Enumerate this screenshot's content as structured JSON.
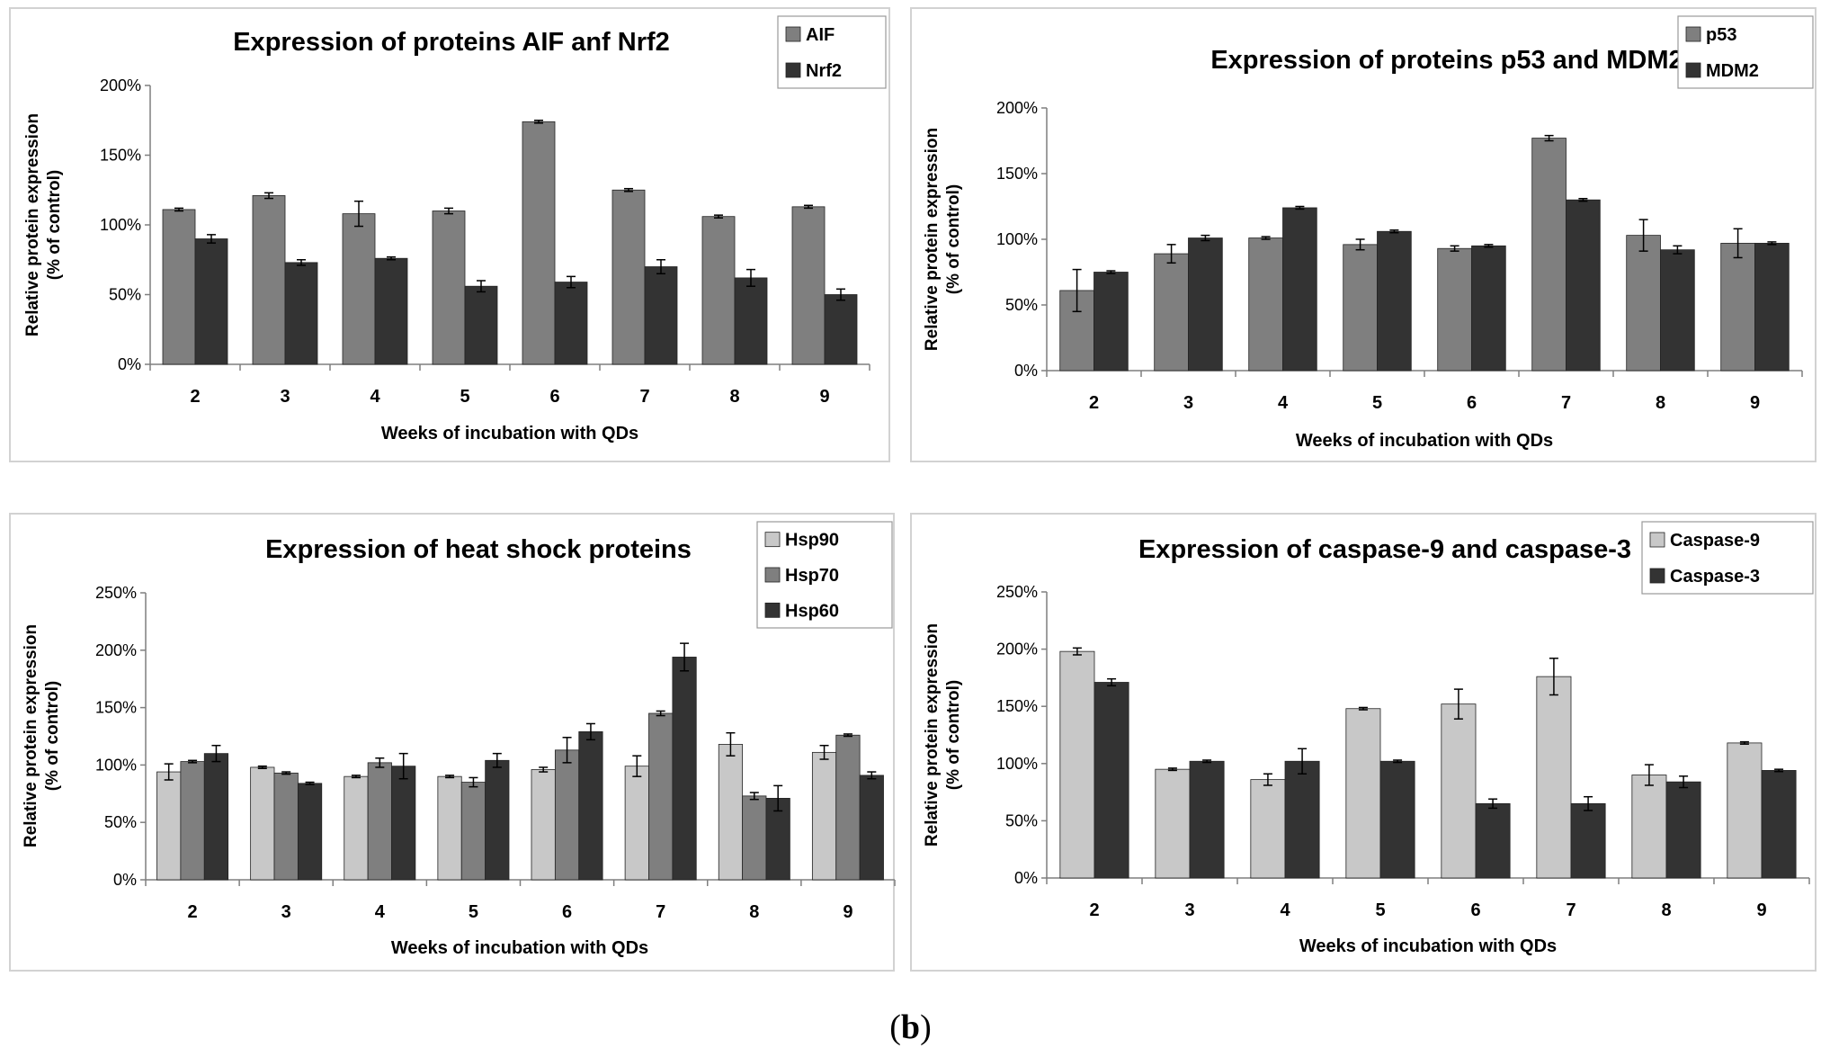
{
  "caption": {
    "open": "(",
    "label": "b",
    "close": ")"
  },
  "colors": {
    "light": "#c8c8c8",
    "mid": "#7f7f7f",
    "dark": "#333333",
    "axis": "#7f7f7f"
  },
  "chart_data": [
    {
      "type": "bar",
      "title": "Expression of proteins AIF anf Nrf2",
      "xlabel": "Weeks of incubation with QDs",
      "ylabel": [
        "Relative protein expression",
        "(% of control)"
      ],
      "categories": [
        "2",
        "3",
        "4",
        "5",
        "6",
        "7",
        "8",
        "9"
      ],
      "ylim": [
        0,
        200
      ],
      "yticks": [
        0,
        50,
        100,
        150,
        200
      ],
      "ytick_labels": [
        "0%",
        "50%",
        "100%",
        "150%",
        "200%"
      ],
      "legend": "top-right",
      "series": [
        {
          "name": "AIF",
          "color": "#7f7f7f",
          "values": [
            111,
            121,
            108,
            110,
            174,
            125,
            106,
            113
          ],
          "errors": [
            1,
            2,
            9,
            2,
            1,
            1,
            1,
            1
          ]
        },
        {
          "name": "Nrf2",
          "color": "#333333",
          "values": [
            90,
            73,
            76,
            56,
            59,
            70,
            62,
            50
          ],
          "errors": [
            3,
            2,
            1,
            4,
            4,
            5,
            6,
            4
          ]
        }
      ]
    },
    {
      "type": "bar",
      "title": "Expression of proteins p53 and MDM2",
      "xlabel": "Weeks of incubation with QDs",
      "ylabel": [
        "Relative protein expression",
        "(% of control)"
      ],
      "categories": [
        "2",
        "3",
        "4",
        "5",
        "6",
        "7",
        "8",
        "9"
      ],
      "ylim": [
        0,
        200
      ],
      "yticks": [
        0,
        50,
        100,
        150,
        200
      ],
      "ytick_labels": [
        "0%",
        "50%",
        "100%",
        "150%",
        "200%"
      ],
      "legend": "top-right",
      "series": [
        {
          "name": "p53",
          "color": "#7f7f7f",
          "values": [
            61,
            89,
            101,
            96,
            93,
            177,
            103,
            97
          ],
          "errors": [
            16,
            7,
            1,
            4,
            2,
            2,
            12,
            11
          ]
        },
        {
          "name": "MDM2",
          "color": "#333333",
          "values": [
            75,
            101,
            124,
            106,
            95,
            130,
            92,
            97
          ],
          "errors": [
            1,
            2,
            1,
            1,
            1,
            1,
            3,
            1
          ]
        }
      ]
    },
    {
      "type": "bar",
      "title": "Expression of heat shock proteins",
      "xlabel": "Weeks of incubation with QDs",
      "ylabel": [
        "Relative protein expression",
        "(% of control)"
      ],
      "categories": [
        "2",
        "3",
        "4",
        "5",
        "6",
        "7",
        "8",
        "9"
      ],
      "ylim": [
        0,
        250
      ],
      "yticks": [
        0,
        50,
        100,
        150,
        200,
        250
      ],
      "ytick_labels": [
        "0%",
        "50%",
        "100%",
        "150%",
        "200%",
        "250%"
      ],
      "legend": "top-right",
      "series": [
        {
          "name": "Hsp90",
          "color": "#c8c8c8",
          "values": [
            94,
            98,
            90,
            90,
            96,
            99,
            118,
            111
          ],
          "errors": [
            7,
            1,
            1,
            1,
            2,
            9,
            10,
            6
          ]
        },
        {
          "name": "Hsp70",
          "color": "#7f7f7f",
          "values": [
            103,
            93,
            102,
            85,
            113,
            145,
            73,
            126
          ],
          "errors": [
            1,
            1,
            4,
            4,
            11,
            2,
            3,
            1
          ]
        },
        {
          "name": "Hsp60",
          "color": "#333333",
          "values": [
            110,
            84,
            99,
            104,
            129,
            194,
            71,
            91
          ],
          "errors": [
            7,
            1,
            11,
            6,
            7,
            12,
            11,
            3
          ]
        }
      ]
    },
    {
      "type": "bar",
      "title": "Expression of caspase-9 and caspase-3",
      "xlabel": "Weeks of incubation with QDs",
      "ylabel": [
        "Relative protein expression",
        "(% of control)"
      ],
      "categories": [
        "2",
        "3",
        "4",
        "5",
        "6",
        "7",
        "8",
        "9"
      ],
      "ylim": [
        0,
        250
      ],
      "yticks": [
        0,
        50,
        100,
        150,
        200,
        250
      ],
      "ytick_labels": [
        "0%",
        "50%",
        "100%",
        "150%",
        "200%",
        "250%"
      ],
      "legend": "top-right",
      "series": [
        {
          "name": "Caspase-9",
          "color": "#c8c8c8",
          "values": [
            198,
            95,
            86,
            148,
            152,
            176,
            90,
            118
          ],
          "errors": [
            3,
            1,
            5,
            1,
            13,
            16,
            9,
            1
          ]
        },
        {
          "name": "Caspase-3",
          "color": "#333333",
          "values": [
            171,
            102,
            102,
            102,
            65,
            65,
            84,
            94
          ],
          "errors": [
            3,
            1,
            11,
            1,
            4,
            6,
            5,
            1
          ]
        }
      ]
    }
  ]
}
